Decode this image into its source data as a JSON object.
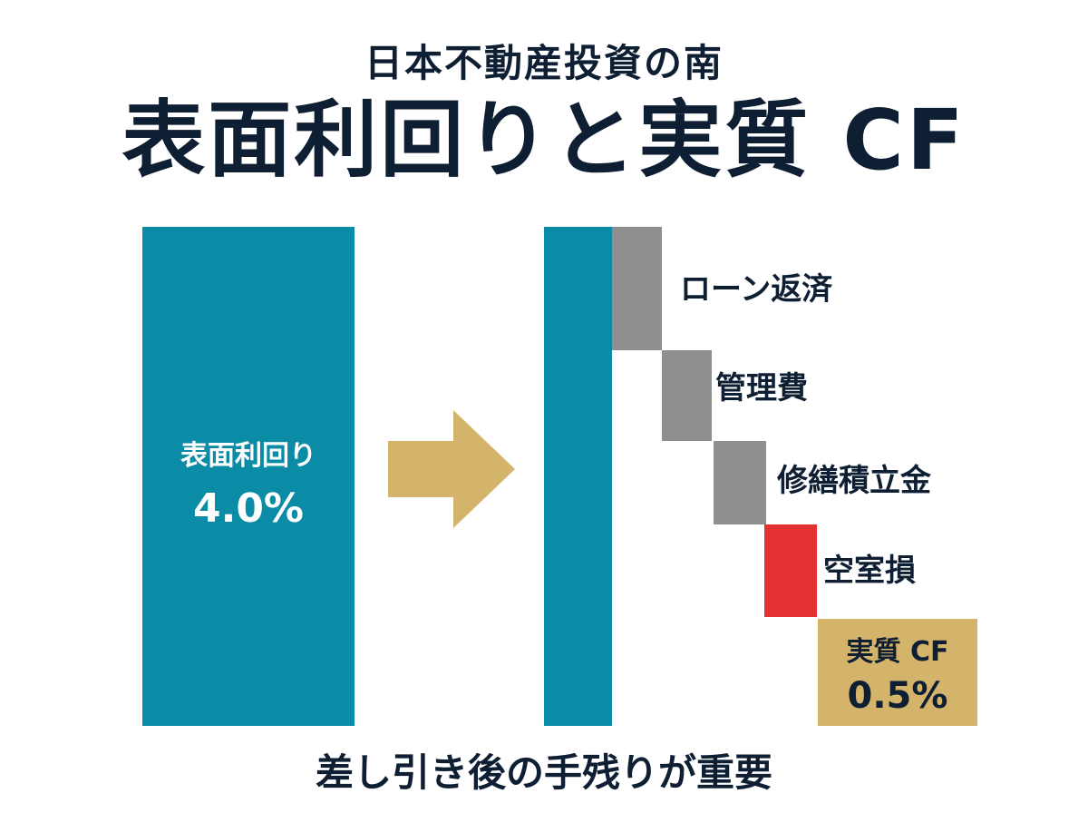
{
  "header": {
    "subtitle": "日本不動産投資の南",
    "title": "表面利回りと実質 CF"
  },
  "footer": {
    "caption": "差し引き後の手残りが重要"
  },
  "colors": {
    "primary_bar": "#0a8ba6",
    "deduction": "#8f8f8f",
    "vacancy_loss": "#e33131",
    "result": "#d4b46a",
    "arrow": "#d4b46a",
    "text_dark": "#0f1f33"
  },
  "chart_data": {
    "type": "bar",
    "title": "表面利回りと実質 CF",
    "gross_yield": {
      "label": "表面利回り",
      "value_label": "4.0%"
    },
    "deductions": [
      {
        "label": "ローン返済",
        "kind": "deduction"
      },
      {
        "label": "管理費",
        "kind": "deduction"
      },
      {
        "label": "修繕積立金",
        "kind": "deduction"
      },
      {
        "label": "空室損",
        "kind": "loss"
      }
    ],
    "net": {
      "label": "実質 CF",
      "value_label": "0.5%"
    }
  }
}
